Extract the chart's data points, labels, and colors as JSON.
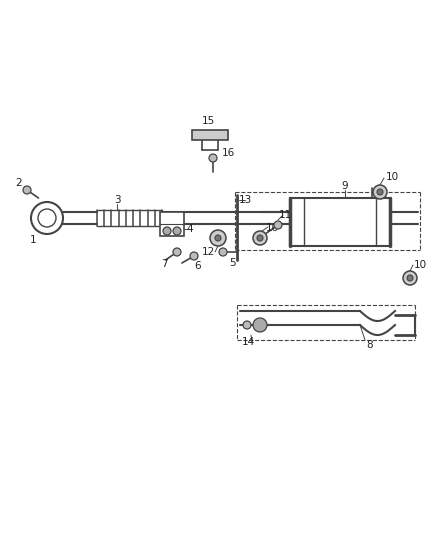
{
  "bg_color": "#ffffff",
  "line_color": "#444444",
  "fig_width": 4.38,
  "fig_height": 5.33,
  "dpi": 100
}
